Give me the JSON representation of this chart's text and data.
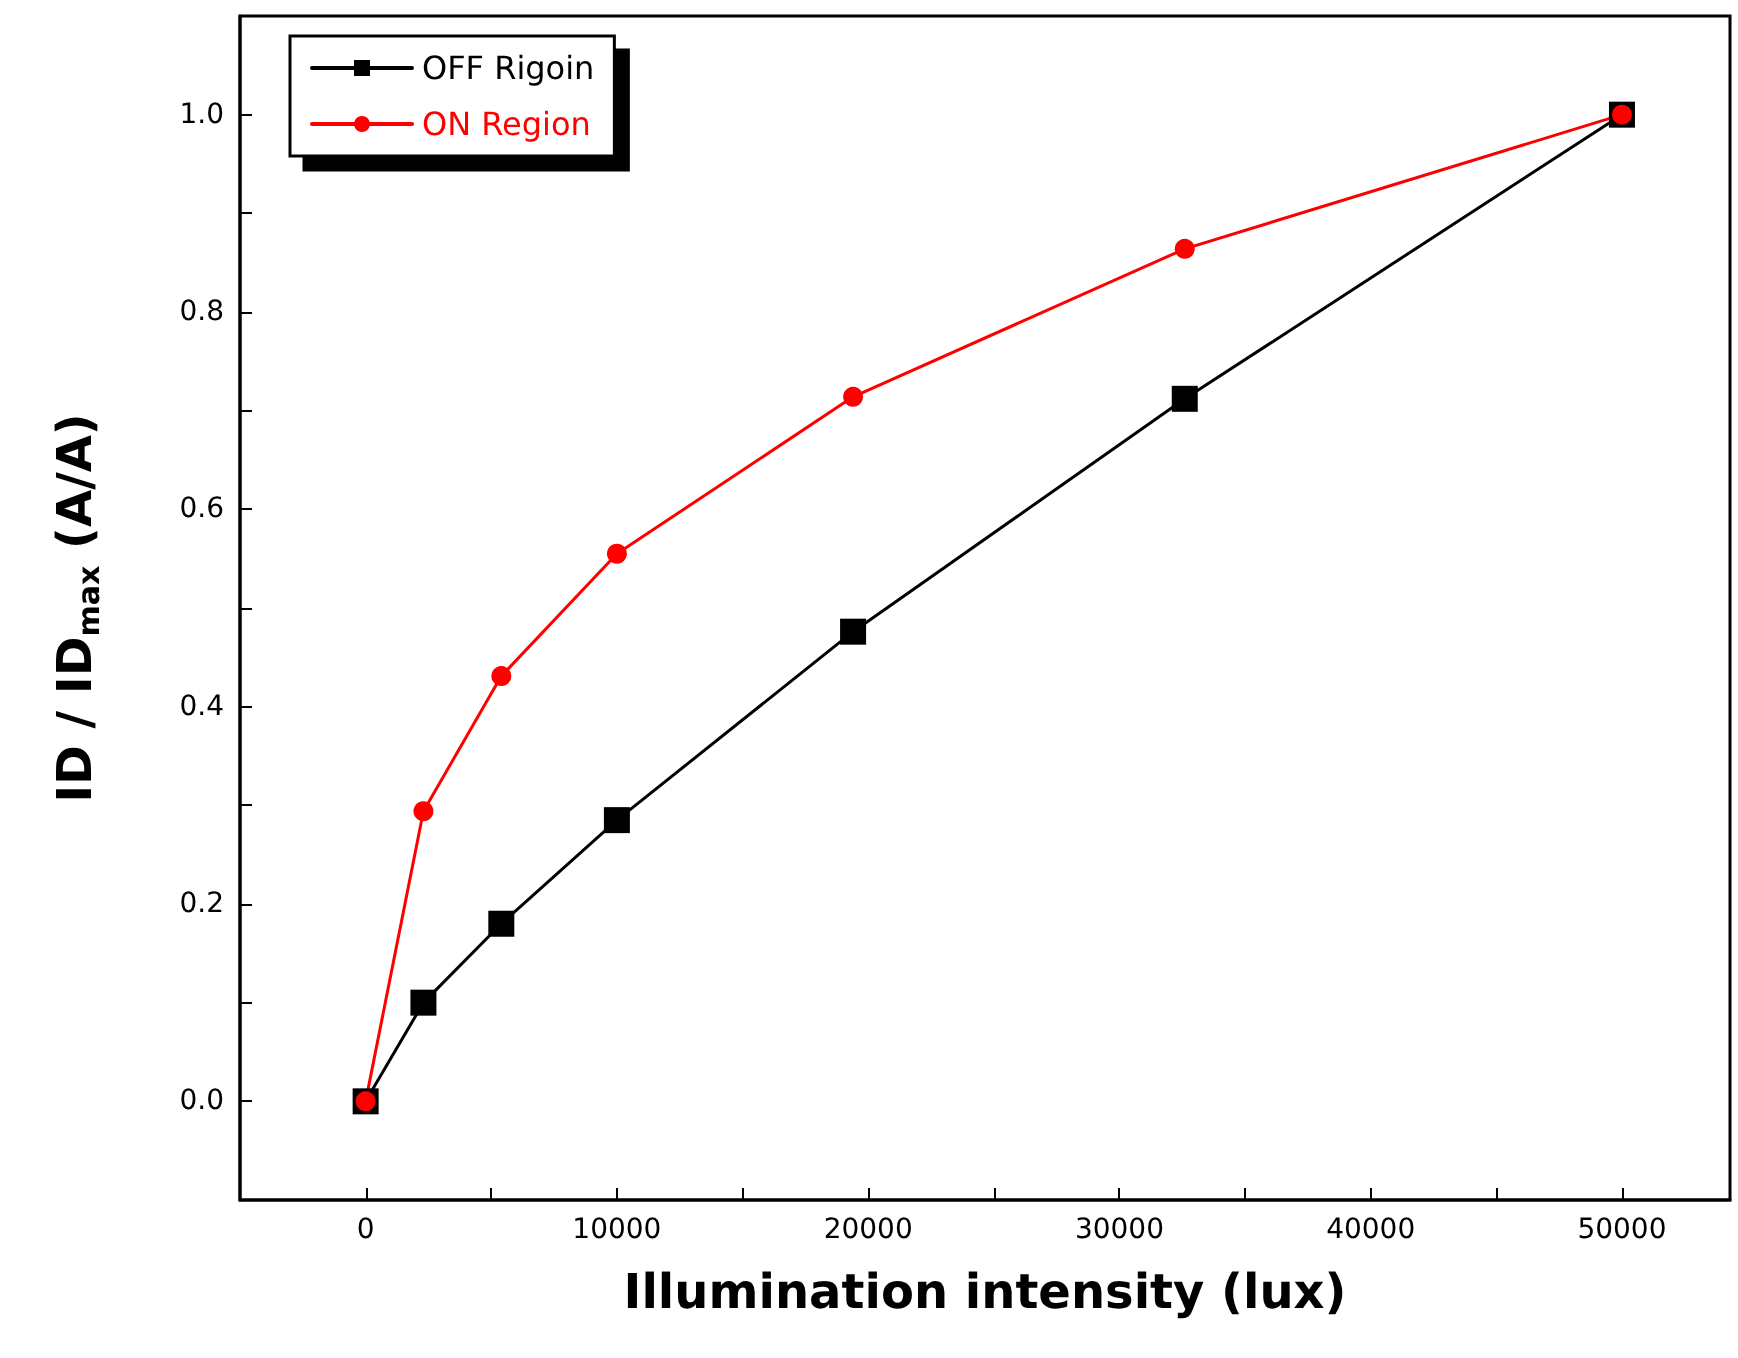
{
  "chart_data": {
    "type": "line",
    "xlabel": "Illumination intensity (lux)",
    "ylabel": "ID / ID$_{max}$ (A/A)",
    "x": [
      0,
      2300,
      5400,
      10000,
      19400,
      32600,
      50000
    ],
    "series": [
      {
        "name": "OFF Rigoin",
        "color": "#000000",
        "marker": "square",
        "values": [
          0,
          0.1,
          0.18,
          0.285,
          0.476,
          0.712,
          1.0
        ]
      },
      {
        "name": "ON Region",
        "color": "#ff0000",
        "marker": "circle",
        "values": [
          0,
          0.294,
          0.431,
          0.555,
          0.714,
          0.864,
          1.0
        ]
      }
    ],
    "xlim": [
      -5000,
      54300
    ],
    "xticks": [
      0,
      {
        "value": 5000,
        "label": null
      },
      10000,
      {
        "value": 15000,
        "label": null
      },
      20000,
      {
        "value": 25000,
        "label": null
      },
      30000,
      {
        "value": 35000,
        "label": null
      },
      40000,
      {
        "value": 45000,
        "label": null
      },
      50000
    ],
    "ylim": [
      -0.1,
      1.1
    ],
    "yticks": [
      {
        "value": 0,
        "label": "0.0"
      },
      {
        "value": 0.1,
        "label": null
      },
      {
        "value": 0.2,
        "label": "0.2"
      },
      {
        "value": 0.3,
        "label": null
      },
      {
        "value": 0.4,
        "label": "0.4"
      },
      {
        "value": 0.5,
        "label": null
      },
      {
        "value": 0.6,
        "label": "0.6"
      },
      {
        "value": 0.7,
        "label": null
      },
      {
        "value": 0.8,
        "label": "0.8"
      },
      {
        "value": 0.9,
        "label": null
      },
      {
        "value": 1.0,
        "label": "1.0"
      }
    ],
    "grid": false,
    "legend": "top left",
    "line_style": "solid"
  }
}
